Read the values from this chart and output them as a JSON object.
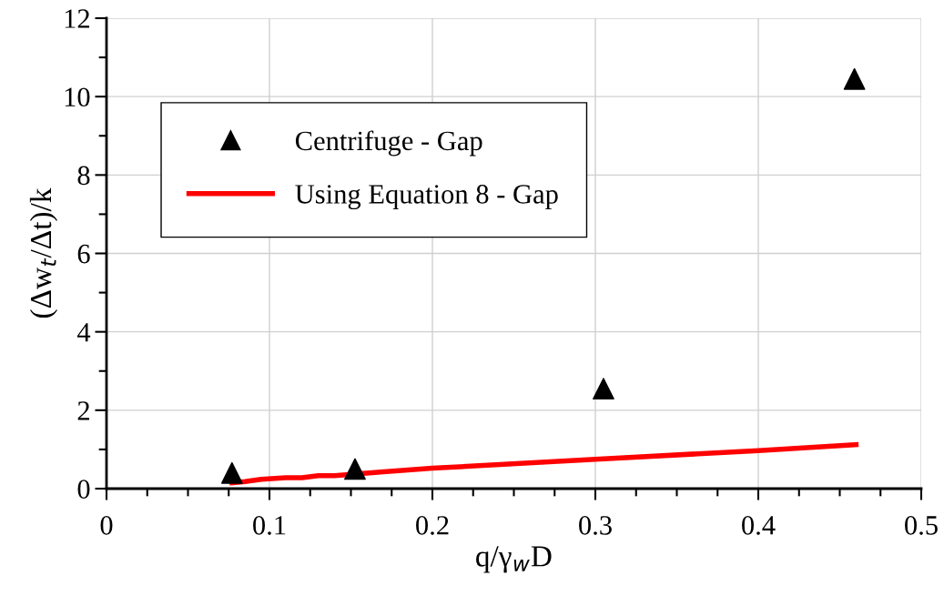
{
  "chart_data": {
    "type": "scatter",
    "xlabel": "q/γ$_{w}$D",
    "ylabel": "(Δw$_{t}$/Δt)/k",
    "series": [
      {
        "name": "Centrifuge - Gap",
        "color": "#000000",
        "marker": "triangle",
        "x": [
          0.077,
          0.1525,
          0.305,
          0.459
        ],
        "values": [
          0.4,
          0.5,
          2.55,
          10.45
        ]
      },
      {
        "name": "Using Equation 8 - Gap",
        "type": "line",
        "color": "#ff0000",
        "marker": "none",
        "x": [
          0.077,
          0.085,
          0.095,
          0.11,
          0.12,
          0.13,
          0.14,
          0.17,
          0.2,
          0.3,
          0.4,
          0.46
        ],
        "values": [
          0.15,
          0.18,
          0.24,
          0.28,
          0.28,
          0.33,
          0.33,
          0.43,
          0.52,
          0.75,
          0.97,
          1.12
        ]
      }
    ],
    "xlim": [
      0,
      0.5
    ],
    "ylim": [
      0,
      12
    ],
    "xticks": [
      0,
      {
        "value": 0.025,
        "label": null
      },
      {
        "value": 0.05,
        "label": null
      },
      {
        "value": 0.075,
        "label": null
      },
      0.1,
      {
        "value": 0.125,
        "label": null
      },
      {
        "value": 0.15,
        "label": null
      },
      {
        "value": 0.175,
        "label": null
      },
      0.2,
      {
        "value": 0.225,
        "label": null
      },
      {
        "value": 0.25,
        "label": null
      },
      {
        "value": 0.275,
        "label": null
      },
      0.3,
      {
        "value": 0.325,
        "label": null
      },
      {
        "value": 0.35,
        "label": null
      },
      {
        "value": 0.375,
        "label": null
      },
      0.4,
      {
        "value": 0.425,
        "label": null
      },
      {
        "value": 0.45,
        "label": null
      },
      {
        "value": 0.475,
        "label": null
      },
      0.5
    ],
    "yticks": [
      0,
      {
        "value": 1,
        "label": null
      },
      2,
      {
        "value": 3,
        "label": null
      },
      4,
      {
        "value": 5,
        "label": null
      },
      6,
      {
        "value": 7,
        "label": null
      },
      8,
      {
        "value": 9,
        "label": null
      },
      10,
      {
        "value": 11,
        "label": null
      },
      12
    ],
    "grid": true,
    "legend": "top left"
  }
}
